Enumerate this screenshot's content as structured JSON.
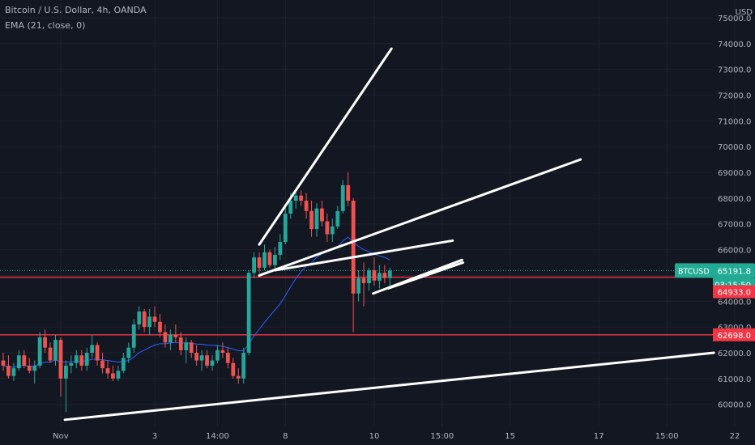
{
  "legend": {
    "title": "Bitcoin / U.S. Dollar, 4h, OANDA",
    "ema": "EMA (21, close, 0)"
  },
  "chart_data": {
    "type": "candlestick",
    "symbol": "BTCUSD",
    "currency_label": "USD",
    "timeframe": "4h",
    "ylim": [
      59300,
      75500
    ],
    "y_ticks": [
      {
        "label": "60000.0",
        "value": 60000
      },
      {
        "label": "61000.0",
        "value": 61000
      },
      {
        "label": "62000.0",
        "value": 62000
      },
      {
        "label": "63000.0",
        "value": 63000
      },
      {
        "label": "64000.0",
        "value": 64000
      },
      {
        "label": "65000.0",
        "value": 65000
      },
      {
        "label": "66000.0",
        "value": 66000
      },
      {
        "label": "67000.0",
        "value": 67000
      },
      {
        "label": "68000.0",
        "value": 68000
      },
      {
        "label": "69000.0",
        "value": 69000
      },
      {
        "label": "70000.0",
        "value": 70000
      },
      {
        "label": "71000.0",
        "value": 71000
      },
      {
        "label": "72000.0",
        "value": 72000
      },
      {
        "label": "73000.0",
        "value": 73000
      },
      {
        "label": "74000.0",
        "value": 74000
      },
      {
        "label": "75000.0",
        "value": 75000
      }
    ],
    "x_ticks": [
      {
        "label": "Nov",
        "index": 11
      },
      {
        "label": "3",
        "index": 29
      },
      {
        "label": "14:00",
        "index": 41
      },
      {
        "label": "8",
        "index": 54
      },
      {
        "label": "10",
        "index": 71
      },
      {
        "label": "15:00",
        "index": 84
      },
      {
        "label": "15",
        "index": 97
      },
      {
        "label": "17",
        "index": 114
      },
      {
        "label": "15:00",
        "index": 127
      },
      {
        "label": "22",
        "index": 140
      }
    ],
    "candles": [
      [
        61700,
        62000,
        61300,
        61500
      ],
      [
        61500,
        61900,
        61000,
        61100
      ],
      [
        61100,
        61600,
        60900,
        61400
      ],
      [
        61400,
        62100,
        61300,
        61900
      ],
      [
        61900,
        62100,
        61400,
        61500
      ],
      [
        61500,
        61800,
        61200,
        61300
      ],
      [
        61300,
        61700,
        60800,
        61500
      ],
      [
        61500,
        62800,
        61400,
        62600
      ],
      [
        62600,
        62900,
        62000,
        62200
      ],
      [
        62200,
        62400,
        61600,
        61700
      ],
      [
        61700,
        62700,
        61500,
        62500
      ],
      [
        62500,
        62600,
        60300,
        61000
      ],
      [
        61000,
        61700,
        59700,
        61500
      ],
      [
        61500,
        61900,
        61200,
        61600
      ],
      [
        61600,
        62100,
        61400,
        61900
      ],
      [
        61900,
        62100,
        61300,
        61500
      ],
      [
        61500,
        62200,
        61300,
        62000
      ],
      [
        62000,
        62700,
        61800,
        62300
      ],
      [
        62300,
        62400,
        61500,
        61700
      ],
      [
        61700,
        62000,
        61200,
        61400
      ],
      [
        61400,
        61700,
        61000,
        61200
      ],
      [
        61200,
        61500,
        60900,
        61000
      ],
      [
        61000,
        61500,
        60900,
        61300
      ],
      [
        61300,
        62000,
        61200,
        61800
      ],
      [
        61800,
        62400,
        61600,
        62200
      ],
      [
        62200,
        63300,
        62000,
        63100
      ],
      [
        63100,
        63800,
        62900,
        63600
      ],
      [
        63600,
        63700,
        62800,
        63000
      ],
      [
        63000,
        63700,
        62700,
        63400
      ],
      [
        63400,
        63800,
        63000,
        63200
      ],
      [
        63200,
        63500,
        62600,
        62800
      ],
      [
        62800,
        63100,
        62200,
        62400
      ],
      [
        62400,
        62900,
        62100,
        62700
      ],
      [
        62700,
        63100,
        62400,
        62600
      ],
      [
        62600,
        62800,
        61900,
        62100
      ],
      [
        62100,
        62600,
        61600,
        62400
      ],
      [
        62400,
        62500,
        61800,
        62000
      ],
      [
        62000,
        62300,
        61500,
        61700
      ],
      [
        61700,
        62100,
        61300,
        61900
      ],
      [
        61900,
        62100,
        61400,
        61500
      ],
      [
        61500,
        61900,
        61300,
        61700
      ],
      [
        61700,
        62300,
        61600,
        62100
      ],
      [
        62100,
        62400,
        61800,
        62000
      ],
      [
        62000,
        62200,
        61400,
        61600
      ],
      [
        61600,
        61800,
        61000,
        61100
      ],
      [
        61100,
        61400,
        60800,
        61000
      ],
      [
        61000,
        62200,
        60800,
        62000
      ],
      [
        62000,
        65200,
        61900,
        65100
      ],
      [
        65100,
        65900,
        64900,
        65700
      ],
      [
        65700,
        65900,
        65100,
        65300
      ],
      [
        65300,
        66200,
        65200,
        65900
      ],
      [
        65900,
        66000,
        65300,
        65400
      ],
      [
        65400,
        66100,
        65200,
        65800
      ],
      [
        65800,
        66600,
        65600,
        66300
      ],
      [
        66300,
        67700,
        66200,
        67400
      ],
      [
        67400,
        68200,
        67200,
        67900
      ],
      [
        67900,
        68300,
        67600,
        68100
      ],
      [
        68100,
        68300,
        67700,
        67900
      ],
      [
        67900,
        68200,
        67200,
        67500
      ],
      [
        67500,
        67900,
        66500,
        66800
      ],
      [
        66800,
        67800,
        66500,
        67600
      ],
      [
        67600,
        67900,
        66900,
        67100
      ],
      [
        67100,
        67400,
        66300,
        66600
      ],
      [
        66600,
        67200,
        66300,
        66900
      ],
      [
        66900,
        67700,
        66800,
        67500
      ],
      [
        67500,
        68700,
        67400,
        68500
      ],
      [
        68500,
        69000,
        67700,
        67900
      ],
      [
        67900,
        68000,
        62800,
        64300
      ],
      [
        64300,
        65200,
        64000,
        64900
      ],
      [
        64900,
        65500,
        63800,
        64700
      ],
      [
        64700,
        65300,
        64400,
        65200
      ],
      [
        65200,
        65700,
        64600,
        64800
      ],
      [
        64800,
        65400,
        64500,
        65100
      ],
      [
        65100,
        65400,
        64700,
        64900
      ],
      [
        64900,
        65300,
        64600,
        65191.8
      ]
    ],
    "ema": [
      61500,
      61450,
      61440,
      61500,
      61500,
      61480,
      61480,
      61580,
      61640,
      61640,
      61720,
      61650,
      61640,
      61650,
      61670,
      61660,
      61690,
      61750,
      61750,
      61730,
      61700,
      61670,
      61640,
      61660,
      61700,
      61830,
      62010,
      62100,
      62210,
      62300,
      62350,
      62350,
      62380,
      62400,
      62380,
      62380,
      62370,
      62340,
      62330,
      62300,
      62290,
      62280,
      62250,
      62200,
      62140,
      62080,
      62080,
      62350,
      62660,
      62910,
      63180,
      63420,
      63660,
      63900,
      64220,
      64560,
      64880,
      65150,
      65370,
      65500,
      65700,
      65840,
      65920,
      66000,
      66120,
      66340,
      66490,
      66290,
      66130,
      66000,
      65920,
      65820,
      65760,
      65700,
      65600
    ],
    "levels": [
      {
        "value": 64933,
        "label": "64933.0",
        "color": "#f23645"
      },
      {
        "value": 62698,
        "label": "62698.0",
        "color": "#f23645"
      }
    ],
    "last_price": {
      "value": 65191.8,
      "label": "65191.8",
      "countdown": "03:15:50",
      "symbol": "BTCUSD",
      "color": "#22ab94"
    },
    "colors": {
      "up": "#26a69a",
      "down": "#ef5350",
      "ema": "#2962ff",
      "background": "#131722",
      "text": "#b2b5be",
      "grid": "#1e222d",
      "trendline": "#ffffff"
    },
    "grid": true
  }
}
